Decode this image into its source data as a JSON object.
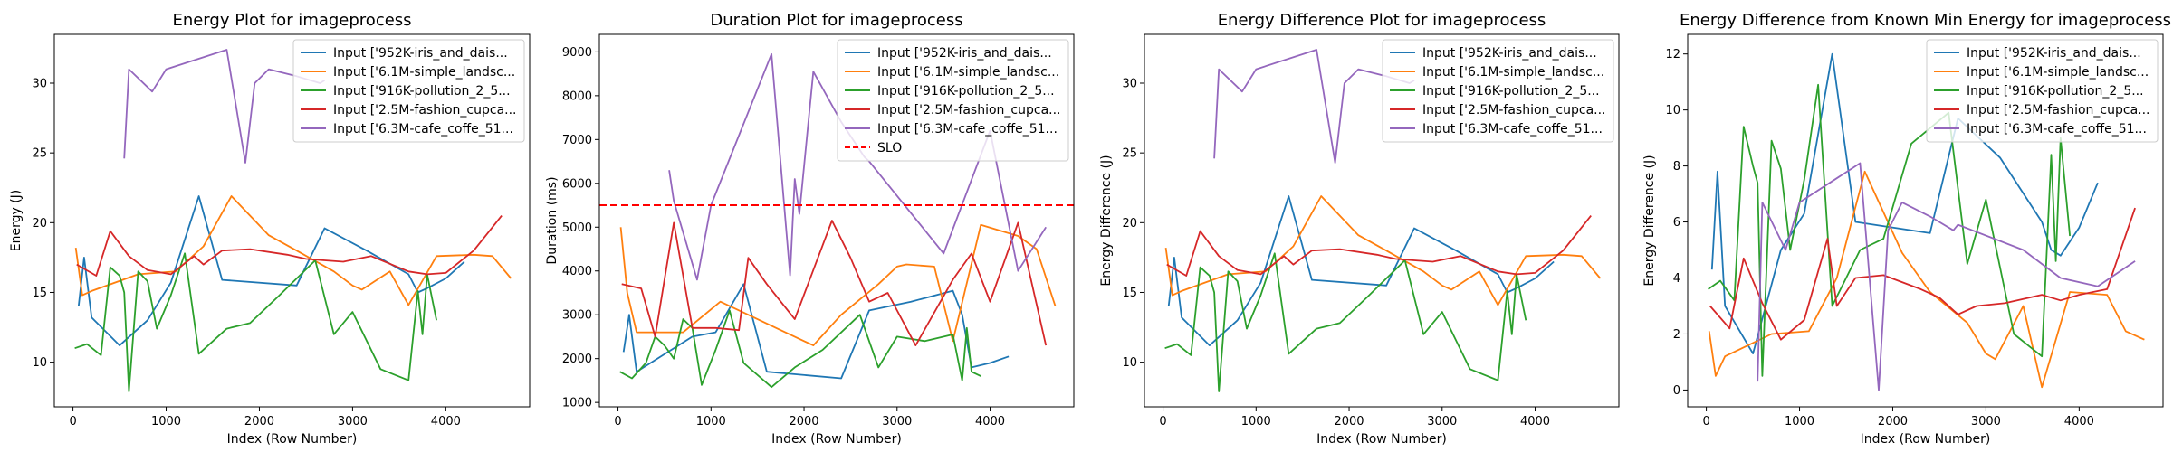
{
  "chart_data": [
    {
      "type": "line",
      "title": "Energy Plot for imageprocess",
      "xlabel": "Index (Row Number)",
      "ylabel": "Energy (J)",
      "xlim": [
        -200,
        4900
      ],
      "ylim": [
        6.8,
        33.5
      ],
      "xticks": [
        0,
        1000,
        2000,
        3000,
        4000
      ],
      "yticks": [
        10,
        15,
        20,
        25,
        30
      ],
      "legend": "top-right",
      "series": [
        {
          "name": "Input ['952K-iris_and_dais...",
          "color": "#1f77b4",
          "x": [
            60,
            120,
            200,
            500,
            800,
            1050,
            1350,
            1600,
            2400,
            2700,
            3150,
            3600,
            3700,
            3800,
            4000,
            4200
          ],
          "y": [
            14.0,
            17.5,
            13.2,
            11.2,
            13.0,
            15.7,
            21.9,
            15.9,
            15.5,
            19.6,
            18.0,
            16.3,
            15.0,
            15.3,
            16.0,
            17.2
          ]
        },
        {
          "name": "Input ['6.1M-simple_landsc...",
          "color": "#ff7f0e",
          "x": [
            30,
            100,
            200,
            700,
            1100,
            1400,
            1700,
            2100,
            2400,
            2800,
            3000,
            3100,
            3400,
            3600,
            3900,
            4300,
            4500,
            4700
          ],
          "y": [
            18.2,
            14.8,
            15.1,
            16.3,
            16.5,
            18.3,
            21.9,
            19.1,
            18.0,
            16.5,
            15.5,
            15.2,
            16.5,
            14.1,
            17.6,
            17.7,
            17.6,
            16.0
          ]
        },
        {
          "name": "Input ['916K-pollution_2_5...",
          "color": "#2ca02c",
          "x": [
            20,
            150,
            300,
            400,
            500,
            550,
            600,
            700,
            800,
            900,
            1050,
            1200,
            1350,
            1650,
            1900,
            2200,
            2600,
            2800,
            3000,
            3300,
            3600,
            3700,
            3750,
            3800,
            3900
          ],
          "y": [
            11.0,
            11.3,
            10.5,
            16.8,
            16.2,
            15.0,
            7.9,
            16.5,
            15.8,
            12.4,
            14.8,
            17.8,
            10.6,
            12.4,
            12.8,
            14.7,
            17.3,
            12.0,
            13.6,
            9.5,
            8.7,
            15.1,
            12.0,
            16.3,
            13.0
          ]
        },
        {
          "name": "Input ['2.5M-fashion_cupca...",
          "color": "#d62728",
          "x": [
            40,
            250,
            400,
            600,
            800,
            1050,
            1300,
            1400,
            1600,
            1900,
            2300,
            2500,
            2700,
            2900,
            3200,
            3600,
            3800,
            4000,
            4300,
            4600
          ],
          "y": [
            17.0,
            16.2,
            19.4,
            17.6,
            16.6,
            16.3,
            17.6,
            17.0,
            18.0,
            18.1,
            17.7,
            17.4,
            17.3,
            17.2,
            17.6,
            16.5,
            16.3,
            16.4,
            18.0,
            20.5
          ]
        },
        {
          "name": "Input ['6.3M-cafe_coffe_51...",
          "color": "#9467bd",
          "x": [
            550,
            600,
            850,
            1000,
            1650,
            1850,
            1950,
            2100,
            2400,
            2650,
            2700
          ],
          "y": [
            24.6,
            31.0,
            29.4,
            31.0,
            32.4,
            24.3,
            30.0,
            31.0,
            30.5,
            30.0,
            30.2
          ]
        }
      ]
    },
    {
      "type": "line",
      "title": "Duration Plot for imageprocess",
      "xlabel": "Index (Row Number)",
      "ylabel": "Duration (ms)",
      "xlim": [
        -200,
        4900
      ],
      "ylim": [
        900,
        9400
      ],
      "xticks": [
        0,
        1000,
        2000,
        3000,
        4000
      ],
      "yticks": [
        1000,
        2000,
        3000,
        4000,
        5000,
        6000,
        7000,
        8000,
        9000
      ],
      "legend": "top-right",
      "series": [
        {
          "name": "Input ['952K-iris_and_dais...",
          "color": "#1f77b4",
          "x": [
            60,
            120,
            200,
            500,
            800,
            1050,
            1350,
            1600,
            2400,
            2700,
            3150,
            3600,
            3700,
            3800,
            4000,
            4200
          ],
          "y": [
            2150,
            3000,
            1700,
            2100,
            2500,
            2600,
            3700,
            1700,
            1550,
            3100,
            3300,
            3550,
            3000,
            1800,
            1900,
            2050
          ]
        },
        {
          "name": "Input ['6.1M-simple_landsc...",
          "color": "#ff7f0e",
          "x": [
            30,
            100,
            200,
            700,
            1100,
            1400,
            1700,
            2100,
            2400,
            2800,
            3000,
            3100,
            3400,
            3600,
            3900,
            4300,
            4500,
            4700
          ],
          "y": [
            5000,
            3500,
            2600,
            2600,
            3300,
            3000,
            2700,
            2300,
            3000,
            3700,
            4100,
            4150,
            4100,
            2400,
            5050,
            4800,
            4500,
            3200
          ]
        },
        {
          "name": "Input ['916K-pollution_2_5...",
          "color": "#2ca02c",
          "x": [
            20,
            150,
            300,
            400,
            500,
            550,
            600,
            700,
            800,
            900,
            1050,
            1200,
            1350,
            1650,
            1900,
            2200,
            2600,
            2800,
            3000,
            3300,
            3600,
            3700,
            3750,
            3800,
            3900
          ],
          "y": [
            1700,
            1550,
            1900,
            2500,
            2300,
            2150,
            2000,
            2900,
            2700,
            1400,
            2200,
            3100,
            1900,
            1350,
            1800,
            2200,
            3000,
            1800,
            2500,
            2400,
            2550,
            1500,
            2700,
            1700,
            1600
          ]
        },
        {
          "name": "Input ['2.5M-fashion_cupca...",
          "color": "#d62728",
          "x": [
            40,
            250,
            400,
            600,
            800,
            1050,
            1300,
            1400,
            1600,
            1900,
            2300,
            2500,
            2700,
            2900,
            3200,
            3600,
            3800,
            4000,
            4300,
            4600
          ],
          "y": [
            3700,
            3600,
            2500,
            5100,
            2700,
            2700,
            2650,
            4300,
            3700,
            2900,
            5150,
            4300,
            3300,
            3500,
            2300,
            3800,
            4400,
            3300,
            5100,
            2300
          ]
        },
        {
          "name": "Input ['6.3M-cafe_coffe_51...",
          "color": "#9467bd",
          "x": [
            550,
            600,
            850,
            1000,
            1650,
            1850,
            1900,
            1950,
            2100,
            2400,
            2650,
            2700,
            3500,
            4000,
            4300,
            4600
          ],
          "y": [
            6300,
            5600,
            3800,
            5500,
            8950,
            3900,
            6100,
            5300,
            8550,
            7400,
            6600,
            6500,
            4400,
            7200,
            4000,
            5000
          ]
        }
      ],
      "reference_line": {
        "name": "SLO",
        "y": 5500,
        "color": "#ff0000",
        "style": "dashed"
      }
    },
    {
      "type": "line",
      "title": "Energy Difference Plot for imageprocess",
      "xlabel": "Index (Row Number)",
      "ylabel": "Energy Difference (J)",
      "xlim": [
        -200,
        4900
      ],
      "ylim": [
        6.8,
        33.5
      ],
      "xticks": [
        0,
        1000,
        2000,
        3000,
        4000
      ],
      "yticks": [
        10,
        15,
        20,
        25,
        30
      ],
      "legend": "top-right",
      "series": [
        {
          "name": "Input ['952K-iris_and_dais...",
          "color": "#1f77b4",
          "x": [
            60,
            120,
            200,
            500,
            800,
            1050,
            1350,
            1600,
            2400,
            2700,
            3150,
            3600,
            3700,
            3800,
            4000,
            4200
          ],
          "y": [
            14.0,
            17.5,
            13.2,
            11.2,
            13.0,
            15.7,
            21.9,
            15.9,
            15.5,
            19.6,
            18.0,
            16.3,
            15.0,
            15.3,
            16.0,
            17.2
          ]
        },
        {
          "name": "Input ['6.1M-simple_landsc...",
          "color": "#ff7f0e",
          "x": [
            30,
            100,
            200,
            700,
            1100,
            1400,
            1700,
            2100,
            2400,
            2800,
            3000,
            3100,
            3400,
            3600,
            3900,
            4300,
            4500,
            4700
          ],
          "y": [
            18.2,
            14.8,
            15.1,
            16.3,
            16.5,
            18.3,
            21.9,
            19.1,
            18.0,
            16.5,
            15.5,
            15.2,
            16.5,
            14.1,
            17.6,
            17.7,
            17.6,
            16.0
          ]
        },
        {
          "name": "Input ['916K-pollution_2_5...",
          "color": "#2ca02c",
          "x": [
            20,
            150,
            300,
            400,
            500,
            550,
            600,
            700,
            800,
            900,
            1050,
            1200,
            1350,
            1650,
            1900,
            2200,
            2600,
            2800,
            3000,
            3300,
            3600,
            3700,
            3750,
            3800,
            3900
          ],
          "y": [
            11.0,
            11.3,
            10.5,
            16.8,
            16.2,
            15.0,
            7.9,
            16.5,
            15.8,
            12.4,
            14.8,
            17.8,
            10.6,
            12.4,
            12.8,
            14.7,
            17.3,
            12.0,
            13.6,
            9.5,
            8.7,
            15.1,
            12.0,
            16.3,
            13.0
          ]
        },
        {
          "name": "Input ['2.5M-fashion_cupca...",
          "color": "#d62728",
          "x": [
            40,
            250,
            400,
            600,
            800,
            1050,
            1300,
            1400,
            1600,
            1900,
            2300,
            2500,
            2700,
            2900,
            3200,
            3600,
            3800,
            4000,
            4300,
            4600
          ],
          "y": [
            17.0,
            16.2,
            19.4,
            17.6,
            16.6,
            16.3,
            17.6,
            17.0,
            18.0,
            18.1,
            17.7,
            17.4,
            17.3,
            17.2,
            17.6,
            16.5,
            16.3,
            16.4,
            18.0,
            20.5
          ]
        },
        {
          "name": "Input ['6.3M-cafe_coffe_51...",
          "color": "#9467bd",
          "x": [
            550,
            600,
            850,
            1000,
            1650,
            1850,
            1950,
            2100,
            2400,
            2650,
            2700
          ],
          "y": [
            24.6,
            31.0,
            29.4,
            31.0,
            32.4,
            24.3,
            30.0,
            31.0,
            30.5,
            30.0,
            30.2
          ]
        }
      ]
    },
    {
      "type": "line",
      "title": "Energy Difference from Known Min Energy for imageprocess",
      "xlabel": "Index (Row Number)",
      "ylabel": "Energy Difference (J)",
      "xlim": [
        -200,
        4900
      ],
      "ylim": [
        -0.6,
        12.7
      ],
      "xticks": [
        0,
        1000,
        2000,
        3000,
        4000
      ],
      "yticks": [
        0,
        2,
        4,
        6,
        8,
        10,
        12
      ],
      "legend": "top-right",
      "series": [
        {
          "name": "Input ['952K-iris_and_dais...",
          "color": "#1f77b4",
          "x": [
            60,
            120,
            200,
            500,
            800,
            1050,
            1350,
            1600,
            2400,
            2700,
            3150,
            3600,
            3700,
            3800,
            4000,
            4200
          ],
          "y": [
            4.3,
            7.8,
            3.0,
            1.3,
            5.0,
            6.3,
            12.0,
            6.0,
            5.6,
            9.7,
            8.3,
            6.0,
            5.0,
            4.8,
            5.8,
            7.4
          ]
        },
        {
          "name": "Input ['6.1M-simple_landsc...",
          "color": "#ff7f0e",
          "x": [
            30,
            100,
            200,
            700,
            1100,
            1400,
            1700,
            2100,
            2400,
            2800,
            3000,
            3100,
            3400,
            3600,
            3900,
            4300,
            4500,
            4700
          ],
          "y": [
            2.1,
            0.5,
            1.2,
            2.0,
            2.1,
            4.0,
            7.8,
            4.9,
            3.5,
            2.4,
            1.3,
            1.1,
            3.0,
            0.1,
            3.5,
            3.4,
            2.1,
            1.8
          ]
        },
        {
          "name": "Input ['916K-pollution_2_5...",
          "color": "#2ca02c",
          "x": [
            20,
            150,
            300,
            400,
            500,
            550,
            600,
            700,
            800,
            900,
            1050,
            1200,
            1350,
            1650,
            1900,
            2200,
            2600,
            2800,
            3000,
            3300,
            3600,
            3700,
            3750,
            3800,
            3900
          ],
          "y": [
            3.6,
            3.9,
            3.2,
            9.4,
            8.0,
            7.4,
            0.5,
            8.9,
            7.9,
            5.0,
            7.5,
            10.9,
            3.0,
            5.0,
            5.4,
            8.8,
            9.9,
            4.5,
            6.8,
            2.0,
            1.2,
            8.4,
            4.6,
            9.0,
            5.5
          ]
        },
        {
          "name": "Input ['2.5M-fashion_cupca...",
          "color": "#d62728",
          "x": [
            40,
            250,
            400,
            600,
            800,
            1050,
            1300,
            1400,
            1600,
            1900,
            2300,
            2500,
            2700,
            2900,
            3200,
            3600,
            3800,
            4000,
            4300,
            4600
          ],
          "y": [
            3.0,
            2.2,
            4.7,
            3.1,
            1.8,
            2.5,
            5.4,
            3.0,
            4.0,
            4.1,
            3.6,
            3.3,
            2.7,
            3.0,
            3.1,
            3.4,
            3.2,
            3.4,
            3.6,
            6.5
          ]
        },
        {
          "name": "Input ['6.3M-cafe_coffe_51...",
          "color": "#9467bd",
          "x": [
            550,
            600,
            850,
            1000,
            1650,
            1850,
            1950,
            2100,
            2400,
            2650,
            2700,
            3400,
            3800,
            4200,
            4600
          ],
          "y": [
            0.3,
            6.7,
            5.0,
            6.7,
            8.1,
            0.0,
            5.7,
            6.7,
            6.2,
            5.7,
            5.9,
            5.0,
            4.0,
            3.7,
            4.6
          ]
        }
      ]
    }
  ]
}
